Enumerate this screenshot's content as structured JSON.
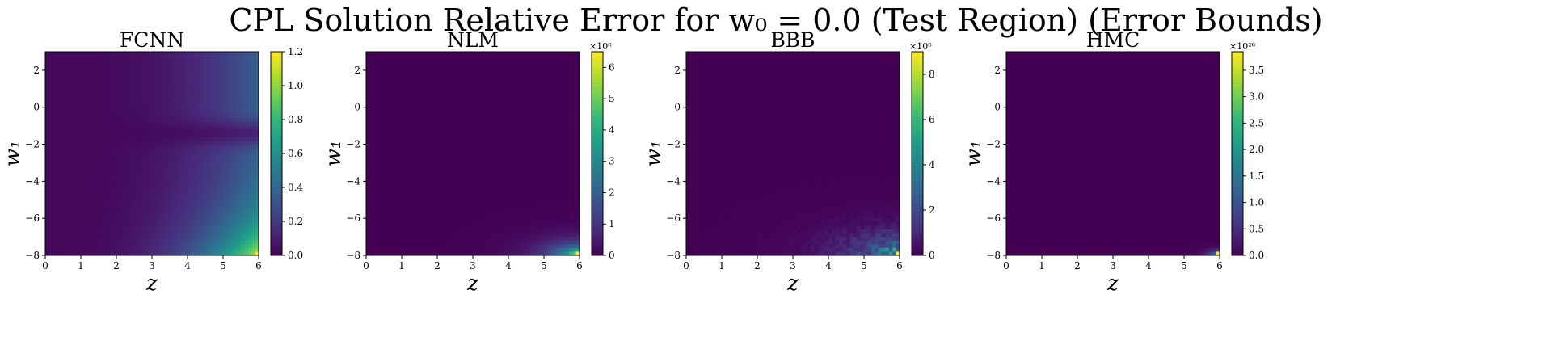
{
  "figure": {
    "title": "CPL Solution Relative Error for w₀ = 0.0 (Test Region) (Error Bounds)"
  },
  "colormap": [
    "#440154",
    "#482878",
    "#3e4989",
    "#31688e",
    "#26828e",
    "#1f9e89",
    "#35b779",
    "#6ece58",
    "#b5de2b",
    "#fde725"
  ],
  "chart_data": [
    {
      "type": "heatmap",
      "title": "FCNN",
      "xlabel": "z",
      "ylabel": "w₁",
      "xlim": [
        0,
        6
      ],
      "ylim": [
        -8,
        3
      ],
      "xticks": [
        "0",
        "1",
        "2",
        "3",
        "4",
        "5",
        "6"
      ],
      "yticks": [
        "−8",
        "−6",
        "−4",
        "−2",
        "0",
        "2"
      ],
      "colorbar": {
        "min": 0.0,
        "max": 1.2,
        "ticks": [
          "0.0",
          "0.2",
          "0.4",
          "0.6",
          "0.8",
          "1.0",
          "1.2"
        ],
        "scale_label": ""
      },
      "pattern": "smooth-gradient",
      "hotspot": {
        "z": 6,
        "w1": -8,
        "relative_level": 1.0
      }
    },
    {
      "type": "heatmap",
      "title": "NLM",
      "xlabel": "z",
      "ylabel": "w₁",
      "xlim": [
        0,
        6
      ],
      "ylim": [
        -8,
        3
      ],
      "xticks": [
        "0",
        "1",
        "2",
        "3",
        "4",
        "5",
        "6"
      ],
      "yticks": [
        "−8",
        "−6",
        "−4",
        "−2",
        "0",
        "2"
      ],
      "colorbar": {
        "min": 0,
        "max": 6.5,
        "ticks": [
          "0",
          "1",
          "2",
          "3",
          "4",
          "5",
          "6"
        ],
        "scale_label": "×10⁸"
      },
      "pattern": "corner-blob",
      "hotspot": {
        "z": 6,
        "w1": -8,
        "relative_level": 1.0
      }
    },
    {
      "type": "heatmap",
      "title": "BBB",
      "xlabel": "z",
      "ylabel": "w₁",
      "xlim": [
        0,
        6
      ],
      "ylim": [
        -8,
        3
      ],
      "xticks": [
        "0",
        "1",
        "2",
        "3",
        "4",
        "5",
        "6"
      ],
      "yticks": [
        "−8",
        "−6",
        "−4",
        "−2",
        "0",
        "2"
      ],
      "colorbar": {
        "min": 0,
        "max": 9,
        "ticks": [
          "0",
          "2",
          "4",
          "6",
          "8"
        ],
        "scale_label": "×10⁸"
      },
      "pattern": "corner-noisy",
      "hotspot": {
        "z": 6,
        "w1": -8,
        "relative_level": 1.0
      }
    },
    {
      "type": "heatmap",
      "title": "HMC",
      "xlabel": "z",
      "ylabel": "w₁",
      "xlim": [
        0,
        6
      ],
      "ylim": [
        -8,
        3
      ],
      "xticks": [
        "0",
        "1",
        "2",
        "3",
        "4",
        "5",
        "6"
      ],
      "yticks": [
        "−8",
        "−6",
        "−4",
        "−2",
        "0",
        "2"
      ],
      "colorbar": {
        "min": 0.0,
        "max": 3.85,
        "ticks": [
          "0.0",
          "0.5",
          "1.0",
          "1.5",
          "2.0",
          "2.5",
          "3.0",
          "3.5"
        ],
        "scale_label": "×10²⁶"
      },
      "pattern": "corner-point",
      "hotspot": {
        "z": 6,
        "w1": -8,
        "relative_level": 1.0
      }
    }
  ]
}
